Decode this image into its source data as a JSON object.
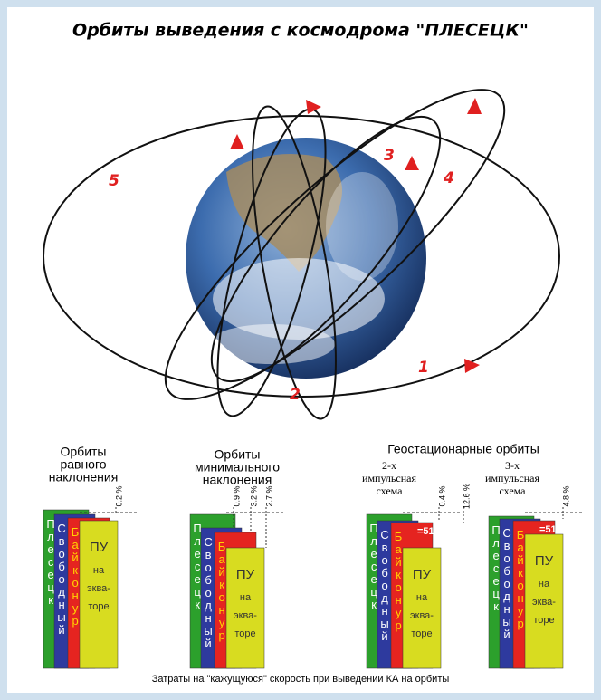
{
  "title": "Орбиты выведения с космодрома \"ПЛЕСЕЦК\"",
  "orbit_labels": [
    "1",
    "2",
    "3",
    "4",
    "5"
  ],
  "geo_title": "Геостационарные орбиты",
  "groups": [
    {
      "title": [
        "Орбиты",
        "равного",
        "наклонения"
      ],
      "percents": [
        "0.2 %"
      ]
    },
    {
      "title": [
        "Орбиты",
        "минимального",
        "наклонения"
      ],
      "percents": [
        "0.9 %",
        "3.2 %",
        "2.7 %"
      ]
    },
    {
      "title": [
        "2-х",
        "импульсная",
        "схема"
      ],
      "percents": [
        "0.4 %",
        "12.6 %"
      ],
      "angle": "=51°"
    },
    {
      "title": [
        "3-х",
        "импульсная",
        "схема"
      ],
      "percents": [
        "4.8 %"
      ],
      "angle": "=51°"
    }
  ],
  "sites": [
    "Плесецк",
    "Свободный",
    "Байконур"
  ],
  "equator": [
    "ПУ",
    "на",
    "эква-",
    "торе"
  ],
  "caption": "Затраты на \"кажущуюся\" скорость при выведении КА на орбиты"
}
